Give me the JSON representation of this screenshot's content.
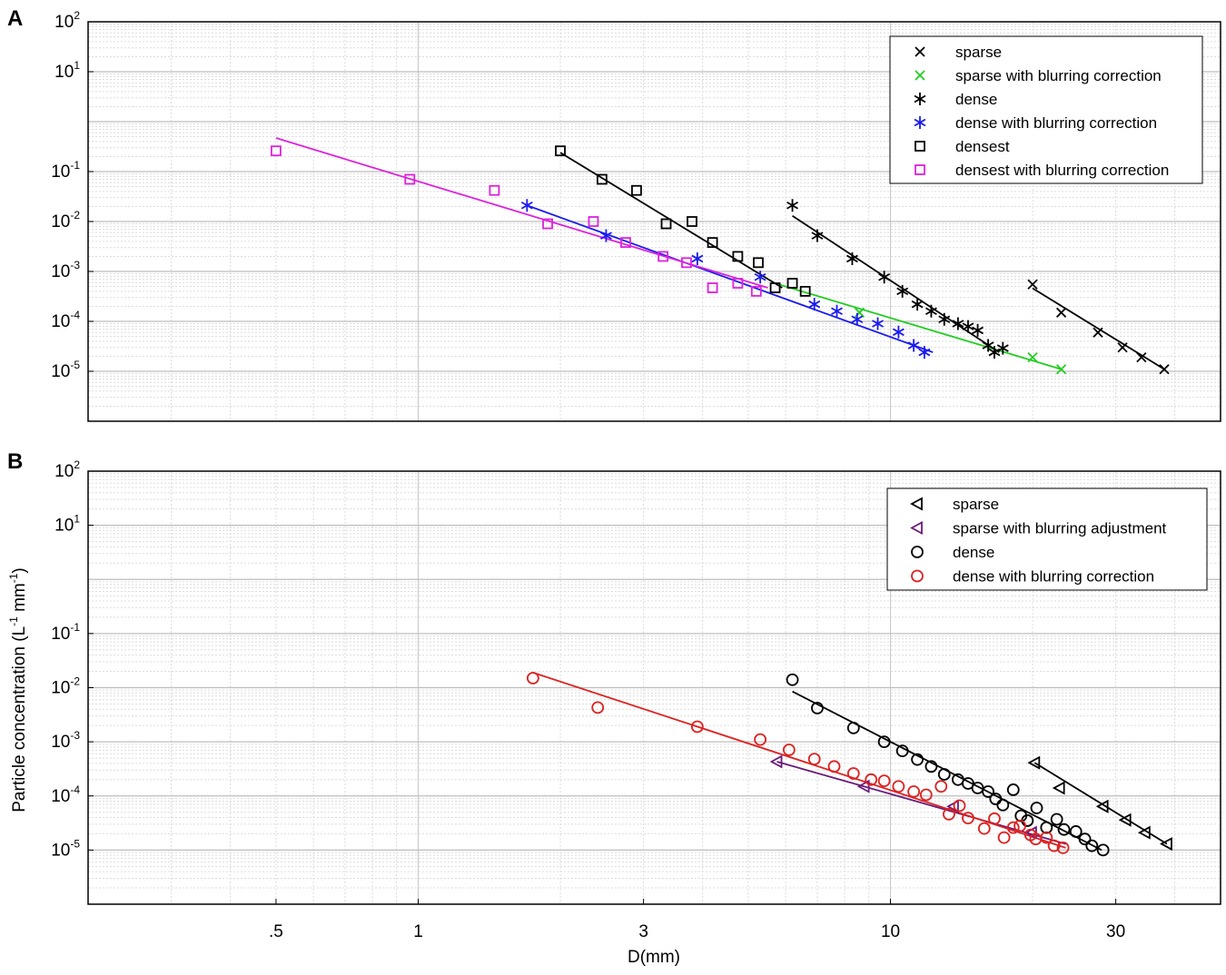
{
  "figure": {
    "x_axis_label": "D(mm)",
    "y_axis_label": "Particle concentration (L",
    "y_axis_label_sup1": "-1",
    "y_axis_label_mid": " mm",
    "y_axis_label_sup2": "-1",
    "y_axis_label_end": ")",
    "x_tick_labels": [
      ".5",
      "1",
      "3",
      "10",
      "30"
    ],
    "x_tick_values": [
      0.5,
      1,
      3,
      10,
      30
    ]
  },
  "chart_data": [
    {
      "panel": "A",
      "type": "scatter",
      "xscale": "log",
      "yscale": "log",
      "xlim": [
        0.2,
        50
      ],
      "ylim": [
        1e-06,
        100
      ],
      "grid": true,
      "legend_position": "top-right",
      "y_tick_labels": [
        {
          "base": "10",
          "exp": "2",
          "value": 100
        },
        {
          "base": "10",
          "exp": "1",
          "value": 10
        },
        {
          "base": "10",
          "exp": "-1",
          "value": 0.1
        },
        {
          "base": "10",
          "exp": "-2",
          "value": 0.01
        },
        {
          "base": "10",
          "exp": "-3",
          "value": 0.001
        },
        {
          "base": "10",
          "exp": "-4",
          "value": 0.0001
        },
        {
          "base": "10",
          "exp": "-5",
          "value": 1e-05
        }
      ],
      "series": [
        {
          "name": "sparse",
          "marker": "x",
          "color": "#000000",
          "x": [
            20,
            23,
            27.5,
            31,
            34,
            38
          ],
          "y": [
            0.00055,
            0.00015,
            6e-05,
            3e-05,
            1.9e-05,
            1.1e-05
          ],
          "fit": {
            "x": [
              20,
              38
            ],
            "y": [
              0.00046,
              1.1e-05
            ]
          }
        },
        {
          "name": "sparse with blurring correction",
          "marker": "x",
          "color": "#22cc22",
          "x": [
            8.6,
            20,
            23
          ],
          "y": [
            0.00015,
            1.9e-05,
            1.1e-05
          ],
          "fit": {
            "x": [
              5.8,
              23
            ],
            "y": [
              0.00055,
              1.1e-05
            ]
          }
        },
        {
          "name": "dense",
          "marker": "asterisk",
          "color": "#000000",
          "x": [
            6.2,
            7,
            8.3,
            9.7,
            10.6,
            11.4,
            12.2,
            13,
            13.9,
            14.6,
            15.3,
            16.1,
            16.6,
            17.3
          ],
          "y": [
            0.021,
            0.0052,
            0.0018,
            0.00077,
            0.0004,
            0.00022,
            0.00016,
            0.00011,
            9e-05,
            7.9e-05,
            6.6e-05,
            3.3e-05,
            2.4e-05,
            2.9e-05
          ],
          "fit": {
            "x": [
              6.2,
              17
            ],
            "y": [
              0.013,
              2.4e-05
            ]
          }
        },
        {
          "name": "dense with blurring correction",
          "marker": "asterisk",
          "color": "#1a1aee",
          "x": [
            1.7,
            2.5,
            3.9,
            5.3,
            6.9,
            7.7,
            8.5,
            9.4,
            10.4,
            11.2,
            11.8
          ],
          "y": [
            0.021,
            0.0052,
            0.0018,
            0.00077,
            0.00022,
            0.00016,
            0.00011,
            9e-05,
            6.1e-05,
            3.3e-05,
            2.4e-05
          ],
          "fit": {
            "x": [
              1.7,
              12.3
            ],
            "y": [
              0.021,
              2.4e-05
            ]
          }
        },
        {
          "name": "densest",
          "marker": "square",
          "color": "#000000",
          "x": [
            2,
            2.45,
            2.9,
            3.35,
            3.8,
            4.2,
            4.75,
            5.25,
            5.7,
            6.2,
            6.6
          ],
          "y": [
            0.26,
            0.07,
            0.042,
            0.009,
            0.01,
            0.0038,
            0.002,
            0.0015,
            0.00047,
            0.00058,
            0.0004
          ],
          "fit": {
            "x": [
              2,
              5.9
            ],
            "y": [
              0.24,
              0.00047
            ]
          }
        },
        {
          "name": "densest with blurring correction",
          "marker": "square",
          "color": "#dd22dd",
          "x": [
            0.5,
            0.96,
            1.45,
            1.88,
            2.35,
            2.75,
            3.3,
            3.7,
            4.2,
            4.75,
            5.2
          ],
          "y": [
            0.26,
            0.07,
            0.042,
            0.009,
            0.01,
            0.0038,
            0.002,
            0.0015,
            0.00047,
            0.00058,
            0.0004
          ],
          "fit": {
            "x": [
              0.5,
              5.5
            ],
            "y": [
              0.47,
              0.00047
            ]
          }
        }
      ]
    },
    {
      "panel": "B",
      "type": "scatter",
      "xscale": "log",
      "yscale": "log",
      "xlim": [
        0.2,
        50
      ],
      "ylim": [
        1e-06,
        100
      ],
      "grid": true,
      "legend_position": "top-right",
      "y_tick_labels": [
        {
          "base": "10",
          "exp": "2",
          "value": 100
        },
        {
          "base": "10",
          "exp": "1",
          "value": 10
        },
        {
          "base": "10",
          "exp": "-1",
          "value": 0.1
        },
        {
          "base": "10",
          "exp": "-2",
          "value": 0.01
        },
        {
          "base": "10",
          "exp": "-3",
          "value": 0.001
        },
        {
          "base": "10",
          "exp": "-4",
          "value": 0.0001
        },
        {
          "base": "10",
          "exp": "-5",
          "value": 1e-05
        }
      ],
      "series": [
        {
          "name": "sparse",
          "marker": "triangle-left",
          "color": "#000000",
          "x": [
            20.2,
            22.8,
            28.2,
            31.5,
            34.6,
            38.5
          ],
          "y": [
            0.00041,
            0.00014,
            6.4e-05,
            3.6e-05,
            2.1e-05,
            1.3e-05
          ],
          "fit": {
            "x": [
              20.2,
              38.5
            ],
            "y": [
              0.00041,
              1.3e-05
            ]
          }
        },
        {
          "name": "sparse with blurring adjustment",
          "marker": "triangle-left",
          "color": "#6a1b7a",
          "x": [
            5.75,
            8.8,
            13.6,
            19.9
          ],
          "y": [
            0.00043,
            0.00015,
            6.4e-05,
            2.1e-05
          ],
          "fit": {
            "x": [
              5.75,
              23.5
            ],
            "y": [
              0.00043,
              1.3e-05
            ]
          }
        },
        {
          "name": "dense",
          "marker": "circle",
          "color": "#000000",
          "x": [
            6.2,
            7,
            8.35,
            9.7,
            10.6,
            11.4,
            12.2,
            13,
            13.9,
            14.6,
            15.3,
            16.1,
            16.7,
            17.3,
            18.2,
            18.9,
            19.5,
            20.4,
            21.4,
            22.5,
            23.3,
            24.7,
            25.8,
            26.7,
            28.2
          ],
          "y": [
            0.014,
            0.0042,
            0.0018,
            0.001,
            0.00068,
            0.00047,
            0.00035,
            0.00025,
            0.0002,
            0.00017,
            0.00014,
            0.00012,
            8.8e-05,
            6.8e-05,
            0.00013,
            4.3e-05,
            3.5e-05,
            6e-05,
            2.6e-05,
            3.7e-05,
            2.4e-05,
            2.2e-05,
            1.6e-05,
            1.2e-05,
            1e-05
          ],
          "fit": {
            "x": [
              6.2,
              28
            ],
            "y": [
              0.0085,
              1e-05
            ]
          }
        },
        {
          "name": "dense with blurring correction",
          "marker": "circle",
          "color": "#dd2222",
          "x": [
            1.75,
            2.4,
            3.9,
            5.3,
            6.1,
            6.9,
            7.6,
            8.35,
            9.1,
            9.7,
            10.4,
            11.2,
            11.9,
            12.8,
            13.3,
            14,
            14.6,
            15.8,
            16.6,
            17.4,
            18.2,
            18.8,
            19.8,
            20.3,
            21.4,
            22.2,
            23.2
          ],
          "y": [
            0.015,
            0.0043,
            0.0019,
            0.0011,
            0.00071,
            0.00048,
            0.00035,
            0.00026,
            0.0002,
            0.00019,
            0.00015,
            0.00012,
            0.000105,
            0.00015,
            4.6e-05,
            6.6e-05,
            3.9e-05,
            2.5e-05,
            3.8e-05,
            1.7e-05,
            2.6e-05,
            2.8e-05,
            1.9e-05,
            1.6e-05,
            1.7e-05,
            1.2e-05,
            1.1e-05
          ],
          "fit": {
            "x": [
              1.75,
              23.5
            ],
            "y": [
              0.019,
              1.1e-05
            ]
          }
        }
      ]
    }
  ]
}
